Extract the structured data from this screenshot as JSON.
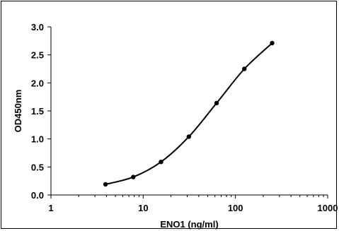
{
  "chart_data": {
    "type": "line",
    "title": "",
    "xlabel": "ENO1 (ng/ml)",
    "ylabel": "OD450nm",
    "x_scale": "log",
    "xlim": [
      1,
      1000
    ],
    "ylim": [
      0.0,
      3.0
    ],
    "x_ticks": [
      1,
      10,
      100,
      1000
    ],
    "x_tick_labels": [
      "1",
      "10",
      "100",
      "1000"
    ],
    "y_ticks": [
      0.0,
      0.5,
      1.0,
      1.5,
      2.0,
      2.5,
      3.0
    ],
    "y_tick_labels": [
      "0.0",
      "0.5",
      "1.0",
      "1.5",
      "2.0",
      "2.5",
      "3.0"
    ],
    "grid": false,
    "legend": "none",
    "series": [
      {
        "x": [
          3.9,
          7.8,
          15.6,
          31.25,
          62.5,
          125,
          250
        ],
        "y": [
          0.19,
          0.32,
          0.59,
          1.04,
          1.64,
          2.25,
          2.71
        ],
        "color": "#000000",
        "marker": "circle",
        "smooth": true
      }
    ]
  }
}
